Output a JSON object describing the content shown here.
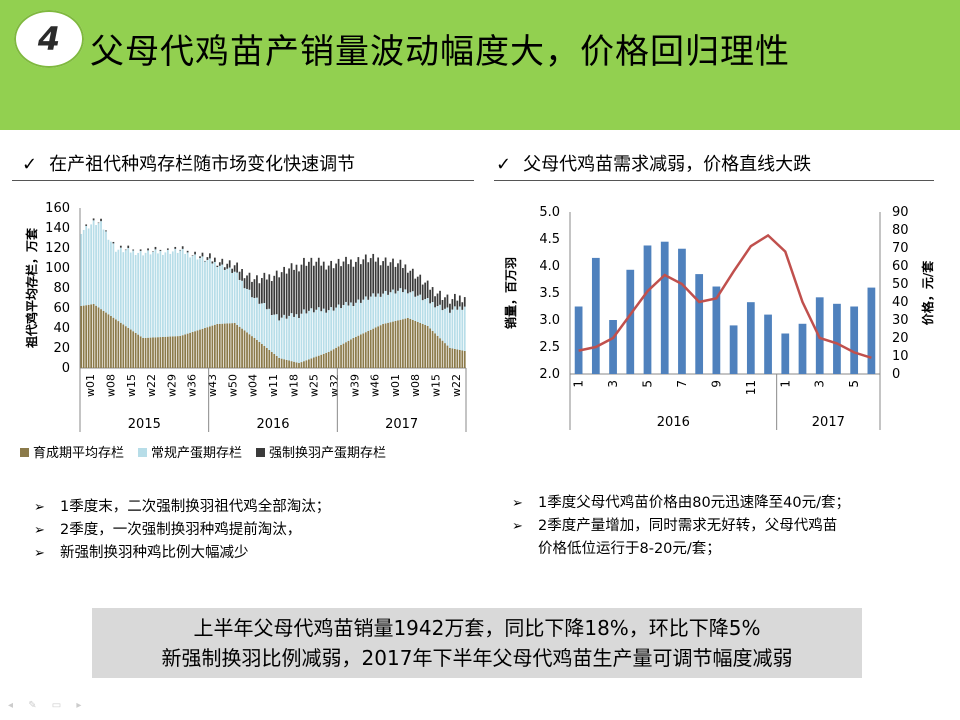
{
  "header": {
    "badge": "4",
    "title": "父母代鸡苗产销量波动幅度大，价格回归理性"
  },
  "left_panel": {
    "check": "✓",
    "title": "在产祖代种鸡存栏随市场变化快速调节",
    "bullets": [
      "1季度末，二次强制换羽祖代鸡全部淘汰；",
      "2季度，一次强制换羽种鸡提前淘汰，",
      "新强制换羽种鸡比例大幅减少"
    ]
  },
  "right_panel": {
    "check": "✓",
    "title": "父母代鸡苗需求减弱，价格直线大跌",
    "bullets": [
      "1季度父母代鸡苗价格由80元迅速降至40元/套；",
      "2季度产量增加，同时需求无好转，父母代鸡苗",
      "价格低位运行于8-20元/套；"
    ]
  },
  "summary": {
    "line1": "上半年父母代鸡苗销量1942万套，同比下降18%，环比下降5%",
    "line2": "新强制换羽比例减弱，2017年下半年父母代鸡苗生产量可调节幅度减弱"
  },
  "chart_data": [
    {
      "type": "bar",
      "stacked": true,
      "ylabel": "祖代鸡平均存栏，万套",
      "ylim": [
        0,
        160
      ],
      "yticks": [
        "0",
        "20",
        "40",
        "60",
        "80",
        "100",
        "120",
        "140",
        "160"
      ],
      "week_ticks": [
        "w01",
        "w08",
        "w15",
        "w22",
        "w29",
        "w36",
        "w43",
        "w50",
        "w04",
        "w11",
        "w18",
        "w25",
        "w32",
        "w39",
        "w46",
        "w01",
        "w08",
        "w15",
        "w22"
      ],
      "years": [
        "2015",
        "2016",
        "2017"
      ],
      "legend": [
        "育成期平均存栏",
        "常规产蛋期存栏",
        "强制换羽产蛋期存栏"
      ],
      "colors": [
        "#8b7a4a",
        "#b7dde8",
        "#3a3a3a"
      ],
      "series": [
        {
          "name": "育成期平均存栏",
          "keyframes": [
            [
              0,
              62
            ],
            [
              5,
              64
            ],
            [
              12,
              52
            ],
            [
              25,
              30
            ],
            [
              40,
              32
            ],
            [
              55,
              44
            ],
            [
              62,
              45
            ],
            [
              70,
              30
            ],
            [
              80,
              10
            ],
            [
              88,
              5
            ],
            [
              100,
              16
            ],
            [
              110,
              30
            ],
            [
              122,
              44
            ],
            [
              132,
              50
            ],
            [
              140,
              42
            ],
            [
              149,
              20
            ],
            [
              155,
              17
            ]
          ]
        },
        {
          "name": "常规产蛋期存栏",
          "keyframes": [
            [
              0,
              75
            ],
            [
              8,
              85
            ],
            [
              14,
              70
            ],
            [
              25,
              85
            ],
            [
              40,
              85
            ],
            [
              55,
              60
            ],
            [
              70,
              40
            ],
            [
              80,
              40
            ],
            [
              90,
              50
            ],
            [
              110,
              35
            ],
            [
              125,
              30
            ],
            [
              140,
              25
            ],
            [
              155,
              45
            ]
          ]
        },
        {
          "name": "强制换羽产蛋期存栏",
          "keyframes": [
            [
              0,
              0
            ],
            [
              40,
              0
            ],
            [
              50,
              2
            ],
            [
              62,
              6
            ],
            [
              72,
              22
            ],
            [
              80,
              45
            ],
            [
              90,
              50
            ],
            [
              100,
              45
            ],
            [
              115,
              40
            ],
            [
              125,
              30
            ],
            [
              140,
              15
            ],
            [
              150,
              10
            ],
            [
              155,
              10
            ]
          ]
        }
      ]
    },
    {
      "type": "bar+line",
      "categories": [
        "1",
        "2",
        "3",
        "4",
        "5",
        "6",
        "7",
        "8",
        "9",
        "10",
        "11",
        "12",
        "1",
        "2",
        "3",
        "4",
        "5",
        "6"
      ],
      "x_ticks": [
        "1",
        "",
        "3",
        "",
        "5",
        "",
        "7",
        "",
        "9",
        "",
        "11",
        "",
        "1",
        "",
        "3",
        "",
        "5",
        ""
      ],
      "years": [
        "2016",
        "2017"
      ],
      "y_left": {
        "label": "销量，百万羽",
        "ylim": [
          2.0,
          5.0
        ],
        "ticks": [
          "2.0",
          "2.5",
          "3.0",
          "3.5",
          "4.0",
          "4.5",
          "5.0"
        ]
      },
      "y_right": {
        "label": "价格，元/套",
        "ylim": [
          0,
          90
        ],
        "ticks": [
          "0",
          "10",
          "20",
          "30",
          "40",
          "50",
          "60",
          "70",
          "80",
          "90"
        ]
      },
      "bars": {
        "color": "#4f81bd",
        "values": [
          3.25,
          4.15,
          3.0,
          3.93,
          4.38,
          4.45,
          4.32,
          3.85,
          3.62,
          2.9,
          3.33,
          3.1,
          2.75,
          2.93,
          3.42,
          3.3,
          3.25,
          3.6
        ]
      },
      "line": {
        "color": "#c0504d",
        "values": [
          13,
          15,
          20,
          33,
          46,
          55,
          50,
          40,
          42,
          57,
          71,
          77,
          68,
          40,
          20,
          17,
          12,
          9
        ]
      }
    }
  ]
}
